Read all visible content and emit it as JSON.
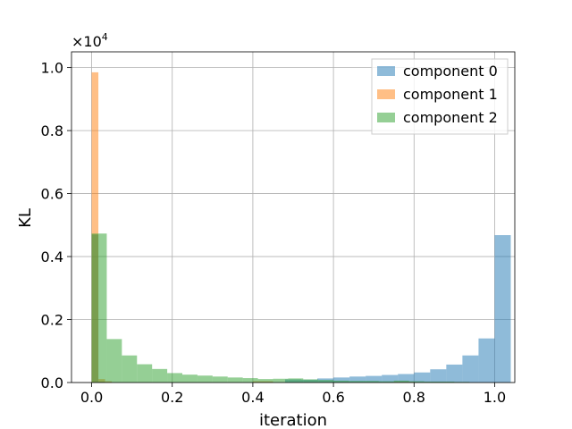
{
  "chart_data": {
    "type": "bar",
    "subtype": "overlapping-histogram",
    "xlabel": "iteration",
    "ylabel": "KL",
    "offset_text": "×10",
    "offset_exponent": "4",
    "xlim": [
      -0.05,
      1.05
    ],
    "ylim": [
      0,
      10500
    ],
    "x_ticks": [
      0.0,
      0.2,
      0.4,
      0.6,
      0.8,
      1.0
    ],
    "x_tick_labels": [
      "0.0",
      "0.2",
      "0.4",
      "0.6",
      "0.8",
      "1.0"
    ],
    "y_ticks": [
      0,
      2000,
      4000,
      6000,
      8000,
      10000
    ],
    "y_tick_labels": [
      "0.0",
      "0.2",
      "0.4",
      "0.6",
      "0.8",
      "1.0"
    ],
    "grid": true,
    "legend_position": "top-right",
    "series": [
      {
        "name": "component 0",
        "color": "#1f77b4",
        "bins": [
          {
            "x0": 0.0,
            "x1": 0.0167,
            "count": 4700
          },
          {
            "x0": 0.0167,
            "x1": 0.0333,
            "count": 30
          },
          {
            "x0": 0.48,
            "x1": 0.52,
            "count": 100
          },
          {
            "x0": 0.52,
            "x1": 0.56,
            "count": 90
          },
          {
            "x0": 0.56,
            "x1": 0.6,
            "count": 130
          },
          {
            "x0": 0.6,
            "x1": 0.64,
            "count": 160
          },
          {
            "x0": 0.64,
            "x1": 0.68,
            "count": 190
          },
          {
            "x0": 0.68,
            "x1": 0.72,
            "count": 210
          },
          {
            "x0": 0.72,
            "x1": 0.76,
            "count": 240
          },
          {
            "x0": 0.76,
            "x1": 0.8,
            "count": 270
          },
          {
            "x0": 0.8,
            "x1": 0.84,
            "count": 320
          },
          {
            "x0": 0.84,
            "x1": 0.88,
            "count": 420
          },
          {
            "x0": 0.88,
            "x1": 0.92,
            "count": 570
          },
          {
            "x0": 0.92,
            "x1": 0.96,
            "count": 860
          },
          {
            "x0": 0.96,
            "x1": 1.0,
            "count": 1400
          },
          {
            "x0": 1.0,
            "x1": 1.04,
            "count": 4680
          }
        ]
      },
      {
        "name": "component 1",
        "color": "#ff7f0e",
        "bins": [
          {
            "x0": 0.0,
            "x1": 0.0167,
            "count": 9850
          },
          {
            "x0": 0.0167,
            "x1": 0.0333,
            "count": 110
          },
          {
            "x0": 0.0333,
            "x1": 0.05,
            "count": 40
          },
          {
            "x0": 0.4,
            "x1": 0.45,
            "count": 40
          },
          {
            "x0": 0.75,
            "x1": 0.8,
            "count": 20
          }
        ]
      },
      {
        "name": "component 2",
        "color": "#2ca02c",
        "bins": [
          {
            "x0": 0.0,
            "x1": 0.0375,
            "count": 4730
          },
          {
            "x0": 0.0375,
            "x1": 0.075,
            "count": 1380
          },
          {
            "x0": 0.075,
            "x1": 0.1125,
            "count": 860
          },
          {
            "x0": 0.1125,
            "x1": 0.15,
            "count": 580
          },
          {
            "x0": 0.15,
            "x1": 0.1875,
            "count": 430
          },
          {
            "x0": 0.1875,
            "x1": 0.225,
            "count": 300
          },
          {
            "x0": 0.225,
            "x1": 0.2625,
            "count": 250
          },
          {
            "x0": 0.2625,
            "x1": 0.3,
            "count": 220
          },
          {
            "x0": 0.3,
            "x1": 0.3375,
            "count": 190
          },
          {
            "x0": 0.3375,
            "x1": 0.375,
            "count": 160
          },
          {
            "x0": 0.375,
            "x1": 0.4125,
            "count": 140
          },
          {
            "x0": 0.4125,
            "x1": 0.45,
            "count": 110
          },
          {
            "x0": 0.45,
            "x1": 0.4875,
            "count": 120
          },
          {
            "x0": 0.4875,
            "x1": 0.525,
            "count": 130
          },
          {
            "x0": 0.525,
            "x1": 0.5625,
            "count": 100
          },
          {
            "x0": 0.5625,
            "x1": 0.6,
            "count": 80
          },
          {
            "x0": 0.6,
            "x1": 0.6375,
            "count": 60
          },
          {
            "x0": 0.6375,
            "x1": 0.675,
            "count": 50
          },
          {
            "x0": 0.675,
            "x1": 0.7125,
            "count": 50
          },
          {
            "x0": 0.7125,
            "x1": 0.75,
            "count": 40
          },
          {
            "x0": 0.75,
            "x1": 0.7875,
            "count": 60
          },
          {
            "x0": 0.7875,
            "x1": 0.825,
            "count": 40
          },
          {
            "x0": 0.825,
            "x1": 0.8625,
            "count": 30
          },
          {
            "x0": 0.8625,
            "x1": 0.9,
            "count": 30
          },
          {
            "x0": 0.9,
            "x1": 0.9375,
            "count": 20
          }
        ]
      }
    ]
  }
}
